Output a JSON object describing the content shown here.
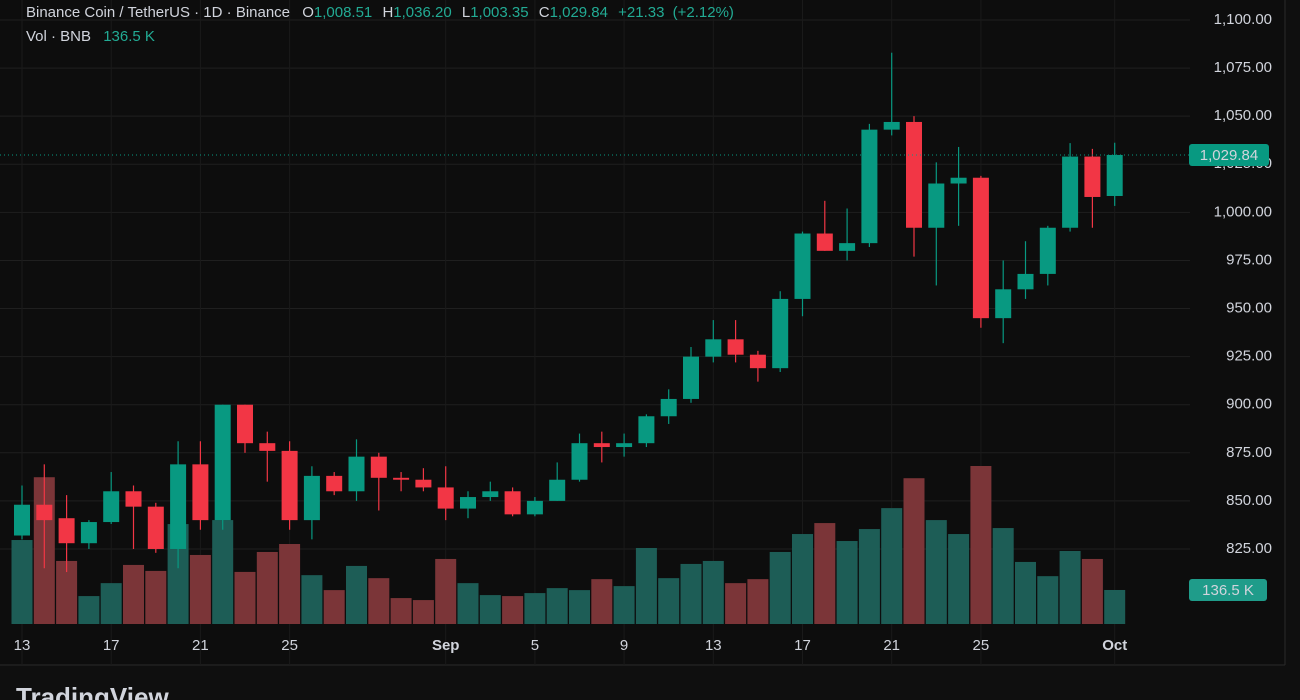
{
  "chart_data": {
    "type": "candlestick",
    "title": "Binance Coin / TetherUS · 1D · Binance",
    "header": {
      "open_key": "O",
      "open": {
        "value": 1008.51,
        "label": "1,008.51"
      },
      "high_key": "H",
      "high": {
        "value": 1036.2,
        "label": "1,036.20"
      },
      "low_key": "L",
      "low": {
        "value": 1003.35,
        "label": "1,003.35"
      },
      "close_key": "C",
      "close": {
        "value": 1029.84,
        "label": "1,029.84"
      },
      "change": {
        "value": 21.33,
        "label": "+21.33"
      },
      "change_pct": {
        "value": 2.12,
        "label": "(+2.12%)"
      }
    },
    "categories": [
      "13",
      null,
      null,
      null,
      "17",
      null,
      null,
      null,
      "21",
      null,
      null,
      null,
      "25",
      null,
      null,
      null,
      null,
      null,
      null,
      "Sep",
      null,
      null,
      null,
      "5",
      null,
      null,
      null,
      "9",
      null,
      null,
      null,
      "13",
      null,
      null,
      null,
      "17",
      null,
      null,
      null,
      "21",
      null,
      null,
      null,
      "25",
      null,
      null,
      null,
      null,
      null,
      "Oct"
    ],
    "open": [
      832,
      848,
      841,
      828,
      839,
      855,
      847,
      825,
      869,
      840,
      900,
      880,
      876,
      840,
      863,
      855,
      873,
      862,
      861,
      857,
      846,
      852,
      855,
      843,
      850,
      861,
      880,
      878,
      880,
      894,
      903,
      925,
      934,
      926,
      919,
      955,
      989,
      980,
      984,
      1043,
      1047,
      992,
      1015,
      1018,
      945,
      960,
      968,
      992,
      1029,
      1008.51
    ],
    "high": [
      858,
      869,
      853,
      840,
      865,
      858,
      849,
      881,
      881,
      900,
      900,
      886,
      881,
      868,
      865,
      882,
      875,
      865,
      867,
      868,
      855,
      860,
      857,
      852,
      870,
      885,
      886,
      885,
      895,
      908,
      930,
      944,
      944,
      928,
      959,
      990,
      1006,
      1002,
      1046,
      1083,
      1050,
      1026,
      1034,
      1019,
      975,
      985,
      993,
      1036,
      1033,
      1036.2
    ],
    "low": [
      830,
      815,
      813,
      825,
      838,
      825,
      823,
      815,
      835,
      835,
      875,
      860,
      835,
      830,
      853,
      850,
      845,
      855,
      855,
      840,
      841,
      850,
      842,
      842,
      850,
      860,
      870,
      873,
      878,
      890,
      901,
      922,
      922,
      912,
      917,
      946,
      980,
      975,
      982,
      1040,
      977,
      962,
      993,
      940,
      932,
      955,
      962,
      990,
      992,
      1003.35
    ],
    "close": [
      848,
      840,
      828,
      839,
      855,
      847,
      825,
      869,
      840,
      900,
      880,
      876,
      840,
      863,
      855,
      873,
      862,
      861,
      857,
      846,
      852,
      855,
      843,
      850,
      861,
      880,
      878,
      880,
      894,
      903,
      925,
      934,
      926,
      919,
      955,
      989,
      980,
      984,
      1043,
      1047,
      992,
      1015,
      1018,
      945,
      960,
      968,
      992,
      1029,
      1008,
      1029.84
    ],
    "last_price_label": "1,029.84",
    "volume": {
      "name": "Vol · BNB",
      "last_label": "136.5 K",
      "values": [
        337,
        589,
        253,
        112,
        164,
        237,
        213,
        401,
        277,
        417,
        209,
        289,
        321,
        196,
        136,
        233,
        184,
        104,
        96,
        261,
        164,
        116,
        112,
        124,
        144,
        136,
        180,
        152,
        305,
        184,
        241,
        253,
        164,
        180,
        289,
        361,
        405,
        333,
        381,
        465,
        585,
        417,
        361,
        634,
        385,
        249,
        192,
        293,
        261,
        136.5
      ]
    },
    "ylim": [
      786,
      1110.4
    ],
    "yticks": [
      {
        "value": 825,
        "label": "825.00"
      },
      {
        "value": 850,
        "label": "850.00"
      },
      {
        "value": 875,
        "label": "875.00"
      },
      {
        "value": 900,
        "label": "900.00"
      },
      {
        "value": 925,
        "label": "925.00"
      },
      {
        "value": 950,
        "label": "950.00"
      },
      {
        "value": 975,
        "label": "975.00"
      },
      {
        "value": 1000,
        "label": "1,000.00"
      },
      {
        "value": 1025,
        "label": "1,025.00"
      },
      {
        "value": 1050,
        "label": "1,050.00"
      },
      {
        "value": 1075,
        "label": "1,075.00"
      },
      {
        "value": 1100,
        "label": "1,100.00"
      }
    ],
    "up_color": "#089981",
    "down_color": "#f23645",
    "up_volume_color": "#1d5d56",
    "down_volume_color": "#7b3538",
    "grid": true,
    "brand": "TradingView"
  }
}
